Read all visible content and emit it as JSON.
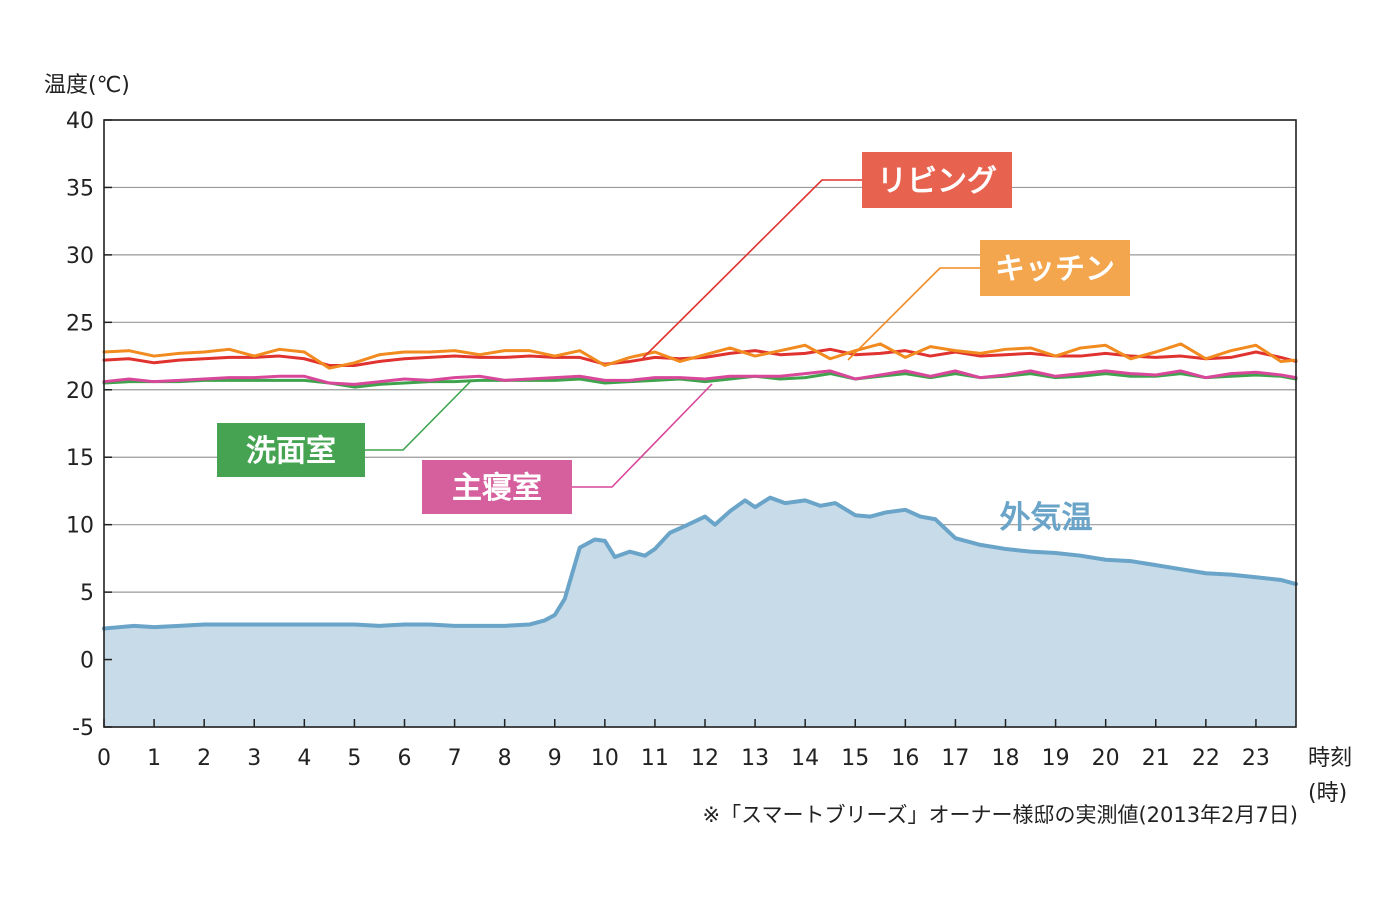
{
  "chart_data": {
    "type": "line",
    "ylabel": "温度(℃)",
    "xlabel": "時刻",
    "xlabel_unit": "(時)",
    "ylim": [
      -5,
      40
    ],
    "xlim": [
      0,
      23.8
    ],
    "y_ticks": [
      "40",
      "35",
      "30",
      "25",
      "20",
      "15",
      "10",
      "5",
      "0",
      "-5"
    ],
    "x_ticks": [
      "0",
      "1",
      "2",
      "3",
      "4",
      "5",
      "6",
      "7",
      "8",
      "9",
      "10",
      "11",
      "12",
      "13",
      "14",
      "15",
      "16",
      "17",
      "18",
      "19",
      "20",
      "21",
      "22",
      "23"
    ],
    "grid": true,
    "note": "※「スマートブリーズ」オーナー様邸の実測値(2013年2月7日)",
    "colors": {
      "living": "#e0322f",
      "kitchen": "#f18a1f",
      "washroom": "#3fa34d",
      "bedroom": "#d8479a",
      "outside": "#6aa4c8",
      "outside_fill": "#c7dbe9"
    },
    "series": [
      {
        "name": "リビング",
        "key": "living",
        "x": [
          0,
          0.5,
          1,
          1.5,
          2,
          2.5,
          3,
          3.5,
          4,
          4.5,
          5,
          5.5,
          6,
          6.5,
          7,
          7.5,
          8,
          8.5,
          9,
          9.5,
          10,
          10.5,
          11,
          11.5,
          12,
          12.5,
          13,
          13.5,
          14,
          14.5,
          15,
          15.5,
          16,
          16.5,
          17,
          17.5,
          18,
          18.5,
          19,
          19.5,
          20,
          20.5,
          21,
          21.5,
          22,
          22.5,
          23,
          23.5,
          23.8
        ],
        "values": [
          22.2,
          22.3,
          22.0,
          22.2,
          22.3,
          22.4,
          22.4,
          22.5,
          22.3,
          21.8,
          21.8,
          22.1,
          22.3,
          22.4,
          22.5,
          22.4,
          22.4,
          22.5,
          22.4,
          22.4,
          21.9,
          22.1,
          22.4,
          22.3,
          22.4,
          22.7,
          22.9,
          22.6,
          22.7,
          23.0,
          22.6,
          22.7,
          22.9,
          22.5,
          22.8,
          22.5,
          22.6,
          22.7,
          22.5,
          22.5,
          22.7,
          22.5,
          22.4,
          22.5,
          22.3,
          22.4,
          22.8,
          22.4,
          22.1
        ]
      },
      {
        "name": "キッチン",
        "key": "kitchen",
        "x": [
          0,
          0.5,
          1,
          1.5,
          2,
          2.5,
          3,
          3.5,
          4,
          4.5,
          5,
          5.5,
          6,
          6.5,
          7,
          7.5,
          8,
          8.5,
          9,
          9.5,
          10,
          10.5,
          11,
          11.5,
          12,
          12.5,
          13,
          13.5,
          14,
          14.5,
          15,
          15.5,
          16,
          16.5,
          17,
          17.5,
          18,
          18.5,
          19,
          19.5,
          20,
          20.5,
          21,
          21.5,
          22,
          22.5,
          23,
          23.5,
          23.8
        ],
        "values": [
          22.8,
          22.9,
          22.5,
          22.7,
          22.8,
          23.0,
          22.5,
          23.0,
          22.8,
          21.6,
          22.0,
          22.6,
          22.8,
          22.8,
          22.9,
          22.6,
          22.9,
          22.9,
          22.5,
          22.9,
          21.8,
          22.4,
          22.8,
          22.1,
          22.6,
          23.1,
          22.5,
          22.9,
          23.3,
          22.3,
          22.9,
          23.4,
          22.4,
          23.2,
          22.9,
          22.7,
          23.0,
          23.1,
          22.5,
          23.1,
          23.3,
          22.3,
          22.8,
          23.4,
          22.3,
          22.9,
          23.3,
          22.1,
          22.2
        ]
      },
      {
        "name": "洗面室",
        "key": "washroom",
        "x": [
          0,
          0.5,
          1,
          1.5,
          2,
          2.5,
          3,
          3.5,
          4,
          4.5,
          5,
          5.5,
          6,
          6.5,
          7,
          7.5,
          8,
          8.5,
          9,
          9.5,
          10,
          10.5,
          11,
          11.5,
          12,
          12.5,
          13,
          13.5,
          14,
          14.5,
          15,
          15.5,
          16,
          16.5,
          17,
          17.5,
          18,
          18.5,
          19,
          19.5,
          20,
          20.5,
          21,
          21.5,
          22,
          22.5,
          23,
          23.5,
          23.8
        ],
        "values": [
          20.5,
          20.6,
          20.6,
          20.6,
          20.7,
          20.7,
          20.7,
          20.7,
          20.7,
          20.5,
          20.2,
          20.4,
          20.5,
          20.6,
          20.6,
          20.7,
          20.7,
          20.7,
          20.7,
          20.8,
          20.5,
          20.6,
          20.7,
          20.8,
          20.6,
          20.8,
          21.0,
          20.8,
          20.9,
          21.2,
          20.8,
          21.0,
          21.2,
          20.9,
          21.2,
          20.9,
          21.0,
          21.2,
          20.9,
          21.0,
          21.2,
          21.0,
          21.0,
          21.2,
          20.9,
          21.0,
          21.1,
          21.0,
          20.8
        ]
      },
      {
        "name": "主寝室",
        "key": "bedroom",
        "x": [
          0,
          0.5,
          1,
          1.5,
          2,
          2.5,
          3,
          3.5,
          4,
          4.5,
          5,
          5.5,
          6,
          6.5,
          7,
          7.5,
          8,
          8.5,
          9,
          9.5,
          10,
          10.5,
          11,
          11.5,
          12,
          12.5,
          13,
          13.5,
          14,
          14.5,
          15,
          15.5,
          16,
          16.5,
          17,
          17.5,
          18,
          18.5,
          19,
          19.5,
          20,
          20.5,
          21,
          21.5,
          22,
          22.5,
          23,
          23.5,
          23.8
        ],
        "values": [
          20.6,
          20.8,
          20.6,
          20.7,
          20.8,
          20.9,
          20.9,
          21.0,
          21.0,
          20.5,
          20.4,
          20.6,
          20.8,
          20.7,
          20.9,
          21.0,
          20.7,
          20.8,
          20.9,
          21.0,
          20.7,
          20.7,
          20.9,
          20.9,
          20.8,
          21.0,
          21.0,
          21.0,
          21.2,
          21.4,
          20.8,
          21.1,
          21.4,
          21.0,
          21.4,
          20.9,
          21.1,
          21.4,
          21.0,
          21.2,
          21.4,
          21.2,
          21.1,
          21.4,
          20.9,
          21.2,
          21.3,
          21.1,
          20.9
        ]
      },
      {
        "name": "外気温",
        "key": "outside",
        "x": [
          0,
          0.3,
          0.6,
          1,
          1.5,
          2,
          2.5,
          3,
          3.5,
          4,
          4.5,
          5,
          5.5,
          6,
          6.5,
          7,
          7.5,
          8,
          8.5,
          8.8,
          9,
          9.2,
          9.5,
          9.8,
          10,
          10.2,
          10.5,
          10.8,
          11,
          11.3,
          11.6,
          12,
          12.2,
          12.5,
          12.8,
          13,
          13.3,
          13.6,
          14,
          14.3,
          14.6,
          15,
          15.3,
          15.6,
          16,
          16.3,
          16.6,
          17,
          17.5,
          18,
          18.5,
          19,
          19.5,
          20,
          20.5,
          21,
          21.5,
          22,
          22.5,
          23,
          23.5,
          23.8
        ],
        "values": [
          2.3,
          2.4,
          2.5,
          2.4,
          2.5,
          2.6,
          2.6,
          2.6,
          2.6,
          2.6,
          2.6,
          2.6,
          2.5,
          2.6,
          2.6,
          2.5,
          2.5,
          2.5,
          2.6,
          2.9,
          3.3,
          4.5,
          8.3,
          8.9,
          8.8,
          7.6,
          8.0,
          7.7,
          8.2,
          9.4,
          9.9,
          10.6,
          10.0,
          11.0,
          11.8,
          11.3,
          12.0,
          11.6,
          11.8,
          11.4,
          11.6,
          10.7,
          10.6,
          10.9,
          11.1,
          10.6,
          10.4,
          9.0,
          8.5,
          8.2,
          8.0,
          7.9,
          7.7,
          7.4,
          7.3,
          7.0,
          6.7,
          6.4,
          6.3,
          6.1,
          5.9,
          5.6
        ]
      }
    ]
  }
}
